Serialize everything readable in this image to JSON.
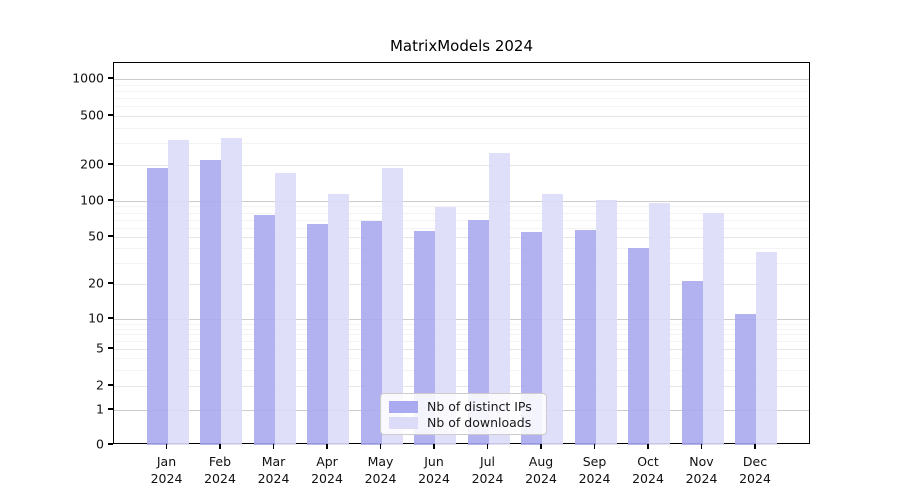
{
  "figure": {
    "title": "MatrixModels 2024"
  },
  "chart_data": {
    "type": "bar",
    "title": "MatrixModels 2024",
    "categories": [
      "Jan 2024",
      "Feb 2024",
      "Mar 2024",
      "Apr 2024",
      "May 2024",
      "Jun 2024",
      "Jul 2024",
      "Aug 2024",
      "Sep 2024",
      "Oct 2024",
      "Nov 2024",
      "Dec 2024"
    ],
    "x_tick_months": [
      "Jan",
      "Feb",
      "Mar",
      "Apr",
      "May",
      "Jun",
      "Jul",
      "Aug",
      "Sep",
      "Oct",
      "Nov",
      "Dec"
    ],
    "x_tick_year": "2024",
    "series": [
      {
        "name": "Nb of distinct IPs",
        "color": "#aaaaf0",
        "values": [
          190,
          220,
          77,
          64,
          68,
          56,
          69,
          55,
          57,
          40,
          21,
          11
        ]
      },
      {
        "name": "Nb of downloads",
        "color": "#dcdcf8",
        "values": [
          320,
          333,
          172,
          115,
          188,
          89,
          248,
          115,
          101,
          96,
          80,
          37
        ]
      }
    ],
    "yscale": "symlog",
    "ylim": [
      0,
      1000
    ],
    "y_ticks": [
      0,
      1,
      2,
      5,
      10,
      20,
      50,
      100,
      200,
      500,
      1000
    ],
    "grid": true,
    "legend": {
      "position": "lower center",
      "entries": [
        "Nb of distinct IPs",
        "Nb of downloads"
      ]
    }
  }
}
